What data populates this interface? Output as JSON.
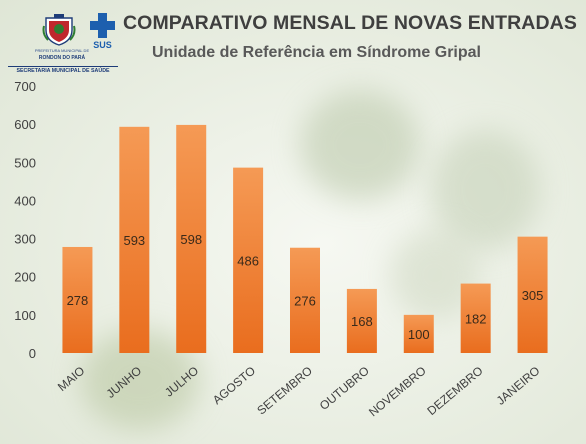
{
  "header": {
    "crest_caption": "PREFEITURA MUNICIPAL DE",
    "city": "RONDON DO PARÁ",
    "department": "SECRETARIA MUNICIPAL DE SAÚDE",
    "sus_label": "SUS",
    "title": "COMPARATIVO MENSAL DE NOVAS ENTRADAS",
    "subtitle": "Unidade de Referência em Síndrome Gripal"
  },
  "colors": {
    "bar_top": "#f59a55",
    "bar_bottom": "#e96d1e",
    "bar_label": "#3a2a1a",
    "axis_text": "#404040",
    "sus_blue": "#1d5fae",
    "crest_red": "#c0272d"
  },
  "chart_data": {
    "type": "bar",
    "title": "COMPARATIVO MENSAL DE NOVAS ENTRADAS",
    "subtitle": "Unidade de Referência em Síndrome Gripal",
    "categories": [
      "MAIO",
      "JUNHO",
      "JULHO",
      "AGOSTO",
      "SETEMBRO",
      "OUTUBRO",
      "NOVEMBRO",
      "DEZEMBRO",
      "JANEIRO"
    ],
    "values": [
      278,
      593,
      598,
      486,
      276,
      168,
      100,
      182,
      305
    ],
    "ylim": [
      0,
      700
    ],
    "yticks": [
      0,
      100,
      200,
      300,
      400,
      500,
      600,
      700
    ],
    "xlabel": "",
    "ylabel": "",
    "grid": false,
    "legend": "none",
    "data_labels": true
  }
}
